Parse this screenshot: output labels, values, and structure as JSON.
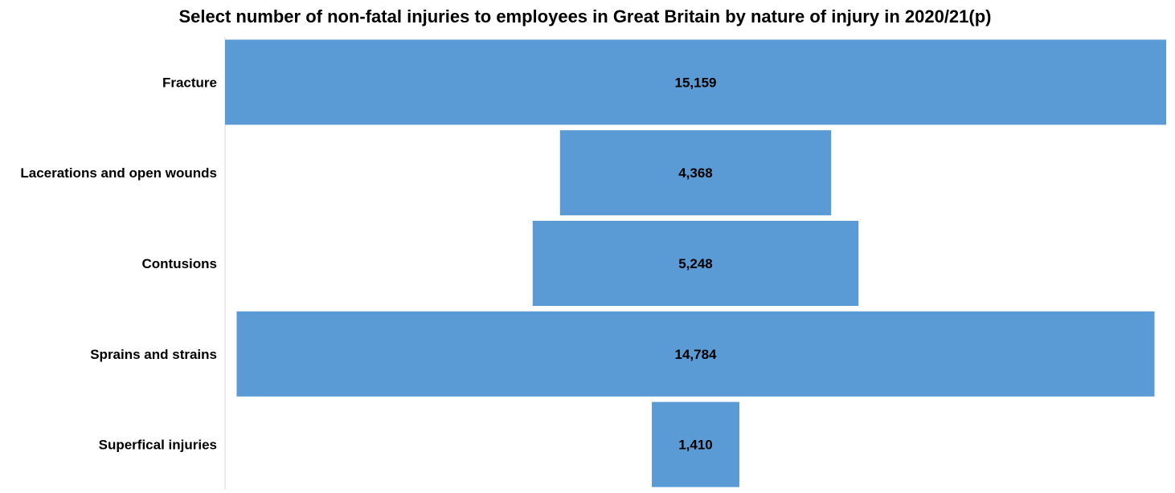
{
  "chart_data": {
    "type": "bar",
    "orientation": "horizontal",
    "style": "funnel",
    "title": "Select number of non-fatal injuries to employees in Great Britain by nature of injury in 2020/21(p)",
    "xlabel": "",
    "ylabel": "",
    "categories": [
      "Fracture",
      "Lacerations and open wounds",
      "Contusions",
      "Sprains and strains",
      "Superfical injuries"
    ],
    "values": [
      15159,
      4368,
      5248,
      14784,
      1410
    ],
    "value_labels": [
      "15,159",
      "4,368",
      "5,248",
      "14,784",
      "1,410"
    ],
    "xlim": [
      0,
      15159
    ],
    "grid": false,
    "legend": "none",
    "bar_color": "#5b9bd5",
    "axis_color": "#d9d9d9"
  }
}
